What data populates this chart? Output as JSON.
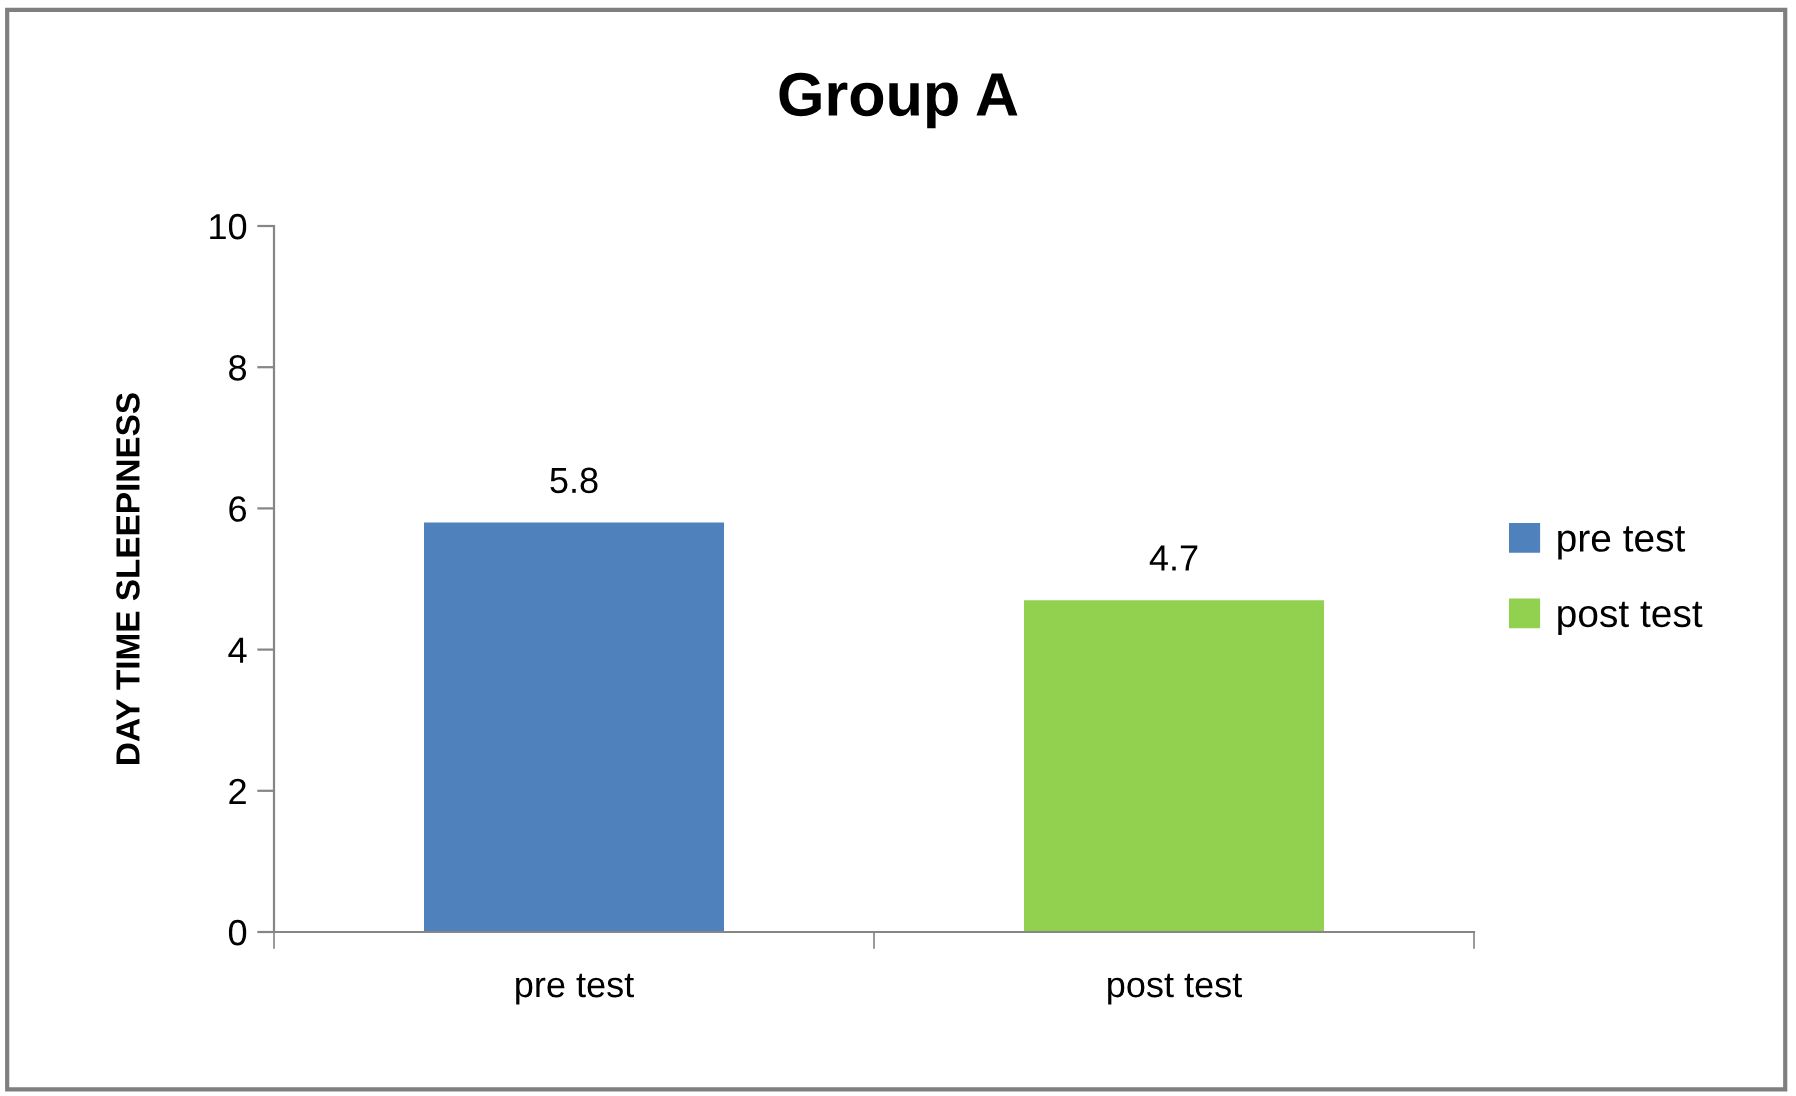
{
  "chart_data": {
    "type": "bar",
    "title": "Group A",
    "ylabel": "DAY TIME SLEEPINESS",
    "categories": [
      "pre test",
      "post test"
    ],
    "series": [
      {
        "name": "pre test",
        "color": "#4f81bd",
        "values": [
          5.8,
          null
        ]
      },
      {
        "name": "post test",
        "color": "#92d050",
        "values": [
          null,
          4.7
        ]
      }
    ],
    "ylim": [
      0,
      10
    ],
    "yticks": [
      0,
      2,
      4,
      6,
      8,
      10
    ],
    "data_labels": true,
    "grid": false,
    "legend": "right"
  }
}
